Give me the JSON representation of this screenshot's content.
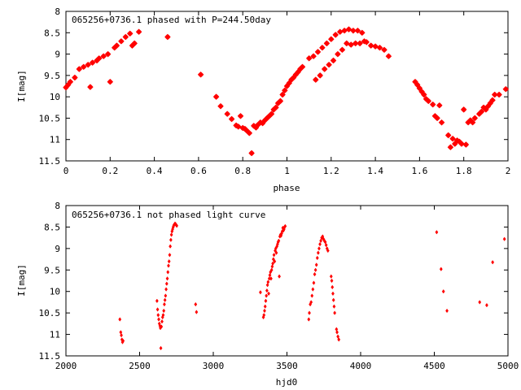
{
  "colors": {
    "points": "#ff0000",
    "axes": "#000000",
    "background": "#ffffff"
  },
  "chart_data": [
    {
      "type": "scatter",
      "title": "065256+0736.1 phased with P=244.50day",
      "xlabel": "phase",
      "ylabel": "I[mag]",
      "xlim": [
        0,
        2
      ],
      "ylim": [
        11.5,
        8
      ],
      "y_inverted": true,
      "xticks": [
        "0",
        "0.2",
        "0.4",
        "0.6",
        "0.8",
        "1",
        "1.2",
        "1.4",
        "1.6",
        "1.8",
        "2"
      ],
      "yticks": [
        "8",
        "8.5",
        "9",
        "9.5",
        "10",
        "10.5",
        "11",
        "11.5"
      ],
      "marker": "star",
      "points": [
        [
          0.0,
          9.78
        ],
        [
          0.01,
          9.72
        ],
        [
          0.02,
          9.65
        ],
        [
          0.04,
          9.55
        ],
        [
          0.06,
          9.35
        ],
        [
          0.08,
          9.3
        ],
        [
          0.1,
          9.25
        ],
        [
          0.11,
          9.77
        ],
        [
          0.12,
          9.2
        ],
        [
          0.14,
          9.15
        ],
        [
          0.15,
          9.1
        ],
        [
          0.17,
          9.05
        ],
        [
          0.19,
          9.0
        ],
        [
          0.2,
          9.65
        ],
        [
          0.22,
          8.85
        ],
        [
          0.23,
          8.8
        ],
        [
          0.25,
          8.7
        ],
        [
          0.27,
          8.6
        ],
        [
          0.29,
          8.52
        ],
        [
          0.3,
          8.8
        ],
        [
          0.31,
          8.75
        ],
        [
          0.33,
          8.48
        ],
        [
          0.46,
          8.6
        ],
        [
          0.61,
          9.48
        ],
        [
          0.68,
          10.0
        ],
        [
          0.7,
          10.22
        ],
        [
          0.73,
          10.4
        ],
        [
          0.75,
          10.52
        ],
        [
          0.77,
          10.67
        ],
        [
          0.78,
          10.7
        ],
        [
          0.79,
          10.45
        ],
        [
          0.8,
          10.73
        ],
        [
          0.81,
          10.75
        ],
        [
          0.82,
          10.8
        ],
        [
          0.83,
          10.85
        ],
        [
          0.84,
          11.32
        ],
        [
          0.85,
          10.68
        ],
        [
          0.86,
          10.72
        ],
        [
          0.87,
          10.65
        ],
        [
          0.88,
          10.6
        ],
        [
          0.89,
          10.62
        ],
        [
          0.9,
          10.55
        ],
        [
          0.91,
          10.5
        ],
        [
          0.92,
          10.45
        ],
        [
          0.93,
          10.4
        ],
        [
          0.94,
          10.3
        ],
        [
          0.95,
          10.25
        ],
        [
          0.96,
          10.15
        ],
        [
          0.97,
          10.1
        ],
        [
          0.98,
          9.95
        ],
        [
          0.99,
          9.85
        ],
        [
          1.0,
          9.75
        ],
        [
          1.01,
          9.68
        ],
        [
          1.02,
          9.6
        ],
        [
          1.03,
          9.55
        ],
        [
          1.04,
          9.48
        ],
        [
          1.05,
          9.42
        ],
        [
          1.06,
          9.35
        ],
        [
          1.07,
          9.3
        ],
        [
          1.1,
          9.1
        ],
        [
          1.12,
          9.05
        ],
        [
          1.13,
          9.6
        ],
        [
          1.14,
          8.95
        ],
        [
          1.15,
          9.5
        ],
        [
          1.16,
          8.85
        ],
        [
          1.17,
          9.35
        ],
        [
          1.18,
          8.75
        ],
        [
          1.19,
          9.25
        ],
        [
          1.2,
          8.65
        ],
        [
          1.21,
          9.15
        ],
        [
          1.22,
          8.55
        ],
        [
          1.23,
          9.0
        ],
        [
          1.24,
          8.48
        ],
        [
          1.25,
          8.9
        ],
        [
          1.26,
          8.45
        ],
        [
          1.27,
          8.75
        ],
        [
          1.28,
          8.42
        ],
        [
          1.29,
          8.78
        ],
        [
          1.3,
          8.45
        ],
        [
          1.31,
          8.75
        ],
        [
          1.32,
          8.45
        ],
        [
          1.33,
          8.75
        ],
        [
          1.34,
          8.5
        ],
        [
          1.35,
          8.7
        ],
        [
          1.36,
          8.72
        ],
        [
          1.38,
          8.8
        ],
        [
          1.4,
          8.82
        ],
        [
          1.42,
          8.85
        ],
        [
          1.44,
          8.9
        ],
        [
          1.46,
          9.05
        ],
        [
          1.58,
          9.65
        ],
        [
          1.59,
          9.72
        ],
        [
          1.6,
          9.8
        ],
        [
          1.61,
          9.88
        ],
        [
          1.62,
          9.95
        ],
        [
          1.63,
          10.05
        ],
        [
          1.64,
          10.1
        ],
        [
          1.66,
          10.18
        ],
        [
          1.67,
          10.45
        ],
        [
          1.68,
          10.5
        ],
        [
          1.69,
          10.2
        ],
        [
          1.7,
          10.6
        ],
        [
          1.73,
          10.9
        ],
        [
          1.74,
          11.18
        ],
        [
          1.75,
          10.98
        ],
        [
          1.76,
          11.1
        ],
        [
          1.77,
          11.02
        ],
        [
          1.78,
          11.05
        ],
        [
          1.79,
          11.1
        ],
        [
          1.8,
          10.3
        ],
        [
          1.81,
          11.12
        ],
        [
          1.82,
          10.6
        ],
        [
          1.83,
          10.55
        ],
        [
          1.84,
          10.6
        ],
        [
          1.85,
          10.5
        ],
        [
          1.87,
          10.4
        ],
        [
          1.88,
          10.35
        ],
        [
          1.89,
          10.25
        ],
        [
          1.9,
          10.3
        ],
        [
          1.91,
          10.22
        ],
        [
          1.92,
          10.15
        ],
        [
          1.93,
          10.08
        ],
        [
          1.94,
          9.95
        ],
        [
          1.96,
          9.95
        ],
        [
          1.99,
          9.82
        ]
      ]
    },
    {
      "type": "scatter",
      "title": "065256+0736.1 not phased light curve",
      "xlabel": "hjd0",
      "ylabel": "I[mag]",
      "xlim": [
        2000,
        5000
      ],
      "ylim": [
        11.5,
        8
      ],
      "y_inverted": true,
      "xticks": [
        "2000",
        "2500",
        "3000",
        "3500",
        "4000",
        "4500",
        "5000"
      ],
      "yticks": [
        "8",
        "8.5",
        "9",
        "9.5",
        "10",
        "10.5",
        "11",
        "11.5"
      ],
      "marker": "diamond",
      "points": [
        [
          2366,
          10.65
        ],
        [
          2372,
          10.95
        ],
        [
          2376,
          11.02
        ],
        [
          2380,
          11.12
        ],
        [
          2384,
          11.18
        ],
        [
          2388,
          11.15
        ],
        [
          2618,
          10.22
        ],
        [
          2622,
          10.42
        ],
        [
          2626,
          10.55
        ],
        [
          2630,
          10.65
        ],
        [
          2634,
          10.75
        ],
        [
          2638,
          10.8
        ],
        [
          2641,
          10.85
        ],
        [
          2644,
          11.32
        ],
        [
          2648,
          10.82
        ],
        [
          2652,
          10.7
        ],
        [
          2656,
          10.6
        ],
        [
          2660,
          10.55
        ],
        [
          2664,
          10.45
        ],
        [
          2668,
          10.3
        ],
        [
          2672,
          10.2
        ],
        [
          2676,
          10.1
        ],
        [
          2680,
          9.95
        ],
        [
          2684,
          9.82
        ],
        [
          2688,
          9.7
        ],
        [
          2692,
          9.55
        ],
        [
          2696,
          9.4
        ],
        [
          2700,
          9.3
        ],
        [
          2704,
          9.15
        ],
        [
          2708,
          8.95
        ],
        [
          2712,
          8.8
        ],
        [
          2716,
          8.68
        ],
        [
          2720,
          8.6
        ],
        [
          2724,
          8.55
        ],
        [
          2728,
          8.5
        ],
        [
          2732,
          8.46
        ],
        [
          2736,
          8.44
        ],
        [
          2740,
          8.42
        ],
        [
          2744,
          8.43
        ],
        [
          2748,
          8.45
        ],
        [
          2752,
          8.47
        ],
        [
          2880,
          10.3
        ],
        [
          2886,
          10.48
        ],
        [
          3320,
          10.02
        ],
        [
          3340,
          10.6
        ],
        [
          3344,
          10.55
        ],
        [
          3348,
          10.45
        ],
        [
          3352,
          10.35
        ],
        [
          3356,
          10.22
        ],
        [
          3360,
          10.1
        ],
        [
          3364,
          9.98
        ],
        [
          3368,
          9.85
        ],
        [
          3372,
          9.78
        ],
        [
          3376,
          10.05
        ],
        [
          3380,
          9.7
        ],
        [
          3384,
          9.62
        ],
        [
          3388,
          9.55
        ],
        [
          3392,
          9.7
        ],
        [
          3396,
          9.5
        ],
        [
          3400,
          9.42
        ],
        [
          3404,
          9.35
        ],
        [
          3408,
          9.25
        ],
        [
          3412,
          9.15
        ],
        [
          3416,
          9.3
        ],
        [
          3420,
          9.05
        ],
        [
          3424,
          9.0
        ],
        [
          3428,
          9.1
        ],
        [
          3432,
          8.95
        ],
        [
          3436,
          8.9
        ],
        [
          3440,
          8.85
        ],
        [
          3444,
          8.82
        ],
        [
          3448,
          9.65
        ],
        [
          3452,
          8.72
        ],
        [
          3456,
          8.68
        ],
        [
          3460,
          8.7
        ],
        [
          3464,
          8.65
        ],
        [
          3468,
          8.6
        ],
        [
          3472,
          8.52
        ],
        [
          3476,
          8.58
        ],
        [
          3480,
          8.55
        ],
        [
          3484,
          8.5
        ],
        [
          3488,
          8.48
        ],
        [
          3648,
          10.65
        ],
        [
          3652,
          10.5
        ],
        [
          3658,
          10.3
        ],
        [
          3664,
          10.25
        ],
        [
          3670,
          10.1
        ],
        [
          3676,
          9.95
        ],
        [
          3682,
          9.8
        ],
        [
          3688,
          9.6
        ],
        [
          3694,
          9.5
        ],
        [
          3700,
          9.38
        ],
        [
          3706,
          9.22
        ],
        [
          3712,
          9.1
        ],
        [
          3718,
          9.0
        ],
        [
          3724,
          8.9
        ],
        [
          3730,
          8.82
        ],
        [
          3736,
          8.75
        ],
        [
          3742,
          8.72
        ],
        [
          3748,
          8.78
        ],
        [
          3754,
          8.82
        ],
        [
          3760,
          8.85
        ],
        [
          3766,
          8.92
        ],
        [
          3772,
          9.0
        ],
        [
          3778,
          9.05
        ],
        [
          3800,
          9.65
        ],
        [
          3804,
          9.75
        ],
        [
          3808,
          9.9
        ],
        [
          3812,
          10.05
        ],
        [
          3816,
          10.2
        ],
        [
          3820,
          10.35
        ],
        [
          3824,
          10.5
        ],
        [
          3836,
          10.88
        ],
        [
          3840,
          10.95
        ],
        [
          3846,
          11.05
        ],
        [
          3852,
          11.12
        ],
        [
          4516,
          8.62
        ],
        [
          4546,
          9.48
        ],
        [
          4562,
          10.0
        ],
        [
          4586,
          10.45
        ],
        [
          4808,
          10.25
        ],
        [
          4856,
          10.32
        ],
        [
          4896,
          9.32
        ],
        [
          4976,
          8.78
        ]
      ]
    }
  ]
}
